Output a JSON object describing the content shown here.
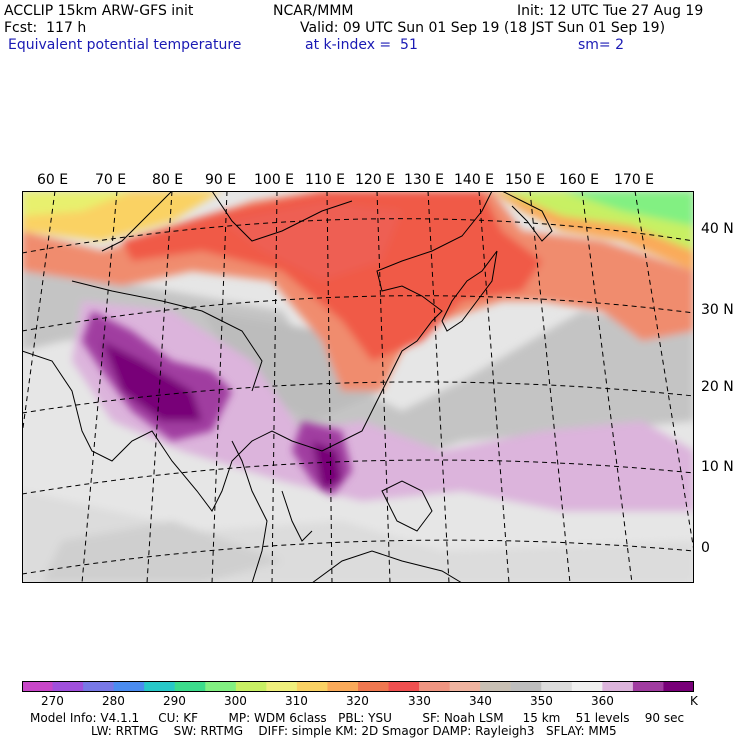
{
  "header": {
    "model": "ACCLIP 15km ARW-GFS init",
    "org": "NCAR/MMM",
    "init": "Init: 12 UTC Tue 27 Aug 19",
    "fcst": "Fcst:  117 h",
    "valid": "Valid: 09 UTC Sun 01 Sep 19 (18 JST Sun 01 Sep 19)",
    "field": "Equivalent potential temperature",
    "level": "at k-index =  51",
    "smooth": "sm= 2"
  },
  "map": {
    "longitude_labels": [
      "60 E",
      "70 E",
      "80 E",
      "90 E",
      "100 E",
      "110 E",
      "120 E",
      "130 E",
      "140 E",
      "150 E",
      "160 E",
      "170 E"
    ],
    "latitude_labels": [
      "40 N",
      "30 N",
      "20 N",
      "10 N",
      "0"
    ]
  },
  "colorbar": {
    "unit": "K",
    "tick_labels": [
      "270",
      "280",
      "290",
      "300",
      "310",
      "320",
      "330",
      "340",
      "350",
      "360"
    ],
    "colors": [
      "#c846c8",
      "#a050dc",
      "#7878e6",
      "#4b8cf0",
      "#28c8c8",
      "#3cdc8c",
      "#82f082",
      "#c8f064",
      "#f0f07d",
      "#fad264",
      "#faaa5a",
      "#f07850",
      "#f05050",
      "#f09682",
      "#f0b4a0",
      "#c8c0b4",
      "#bebebe",
      "#dcdcdc",
      "#f0f0f0",
      "#dcb4dc",
      "#a03ca0",
      "#780078"
    ]
  },
  "model_info": {
    "line1": "Model Info: V4.1.1     CU: KF        MP: WDM 6class   PBL: YSU        SF: Noah LSM     15 km    51 levels    90 sec",
    "line2": "                LW: RRTMG    SW: RRTMG    DIFF: simple KM: 2D Smagor DAMP: Rayleigh3   SFLAY: MM5"
  }
}
